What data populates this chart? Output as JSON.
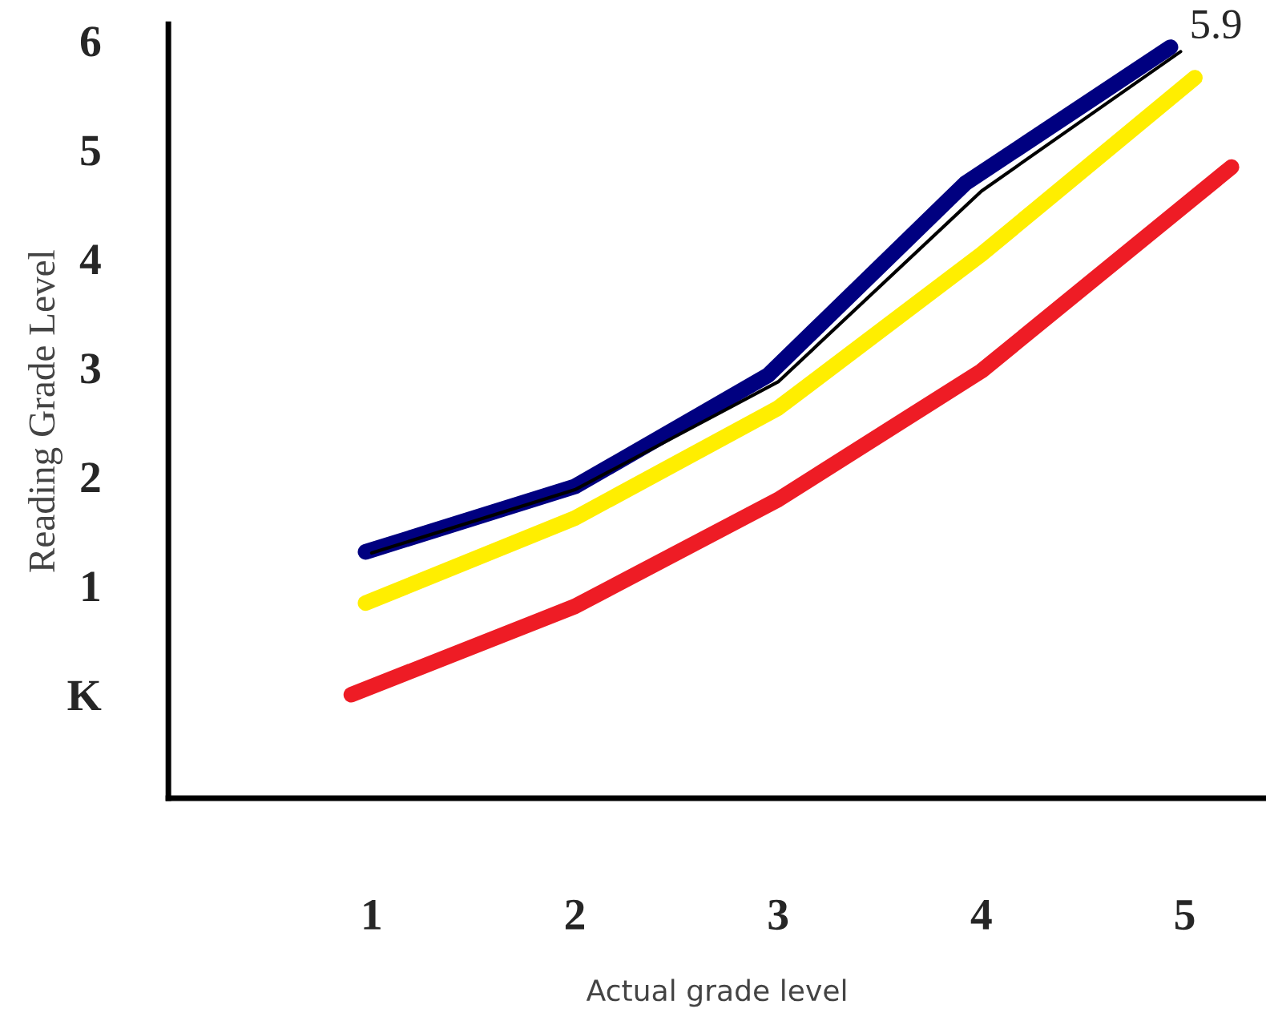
{
  "chart_data": {
    "type": "line",
    "xlabel": "Actual grade level",
    "ylabel": "Reading Grade Level",
    "xlim": [
      0,
      5.4
    ],
    "xticks": [
      1,
      2,
      3,
      4,
      5
    ],
    "ylim": [
      -0.95,
      6.15
    ],
    "yticks": [
      {
        "value": 0,
        "label": "K"
      },
      1,
      2,
      3,
      4,
      5,
      6
    ],
    "grid": false,
    "legend": false,
    "marker": "none",
    "line_style": "solid",
    "series": [
      {
        "color": "#000080",
        "x": [
          0.97,
          2,
          2.95,
          3.92,
          4.93
        ],
        "values": [
          1.31,
          1.91,
          2.93,
          4.69,
          5.94
        ]
      },
      {
        "color": "#000000",
        "x": [
          1,
          2,
          3,
          4,
          4.98
        ],
        "values": [
          1.3,
          1.88,
          2.87,
          4.62,
          5.9
        ]
      },
      {
        "color": "#ffee00",
        "x": [
          0.97,
          2,
          3,
          4,
          5.05
        ],
        "values": [
          0.84,
          1.62,
          2.63,
          4.04,
          5.66
        ]
      },
      {
        "color": "#ee1c25",
        "x": [
          0.9,
          2,
          3,
          4,
          5.23
        ],
        "values": [
          0,
          0.81,
          1.79,
          2.97,
          4.84
        ]
      }
    ],
    "annotations": [
      {
        "text": "5.9",
        "x": 4.98,
        "y": 5.9
      }
    ]
  }
}
